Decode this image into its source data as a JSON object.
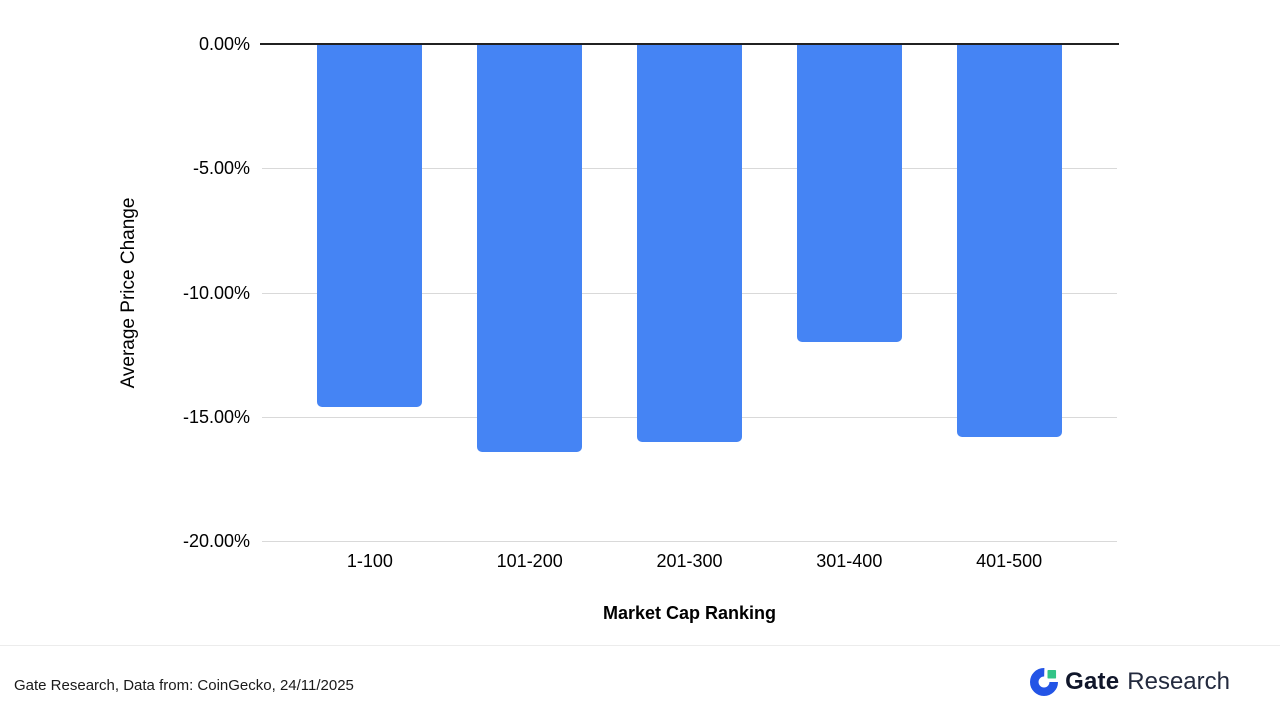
{
  "page": {
    "background": "#ffffff"
  },
  "chart_data": {
    "type": "bar",
    "title": "",
    "categories": [
      "1-100",
      "101-200",
      "201-300",
      "301-400",
      "401-500"
    ],
    "values": [
      -14.6,
      -16.4,
      -16.0,
      -12.0,
      -15.8
    ],
    "xlabel": "Market Cap Ranking",
    "ylabel": "Average Price Change",
    "ylim": [
      -20,
      0
    ],
    "ytick_values": [
      0,
      -5,
      -10,
      -15,
      -20
    ],
    "ytick_labels": [
      "0.00%",
      "-5.00%",
      "-10.00%",
      "-15.00%",
      "-20.00%"
    ],
    "bar_color": "#4584F4",
    "gridline_color": "#d9d9d9",
    "zero_line_color": "#212121",
    "grid": true,
    "legend_position": "none"
  },
  "footer": {
    "source_text": "Gate Research, Data from: CoinGecko, 24/11/2025",
    "logo": {
      "brand": "Gate",
      "suffix": "Research",
      "blue": "#2354E6",
      "green": "#33C487",
      "dark": "#10162a"
    }
  }
}
